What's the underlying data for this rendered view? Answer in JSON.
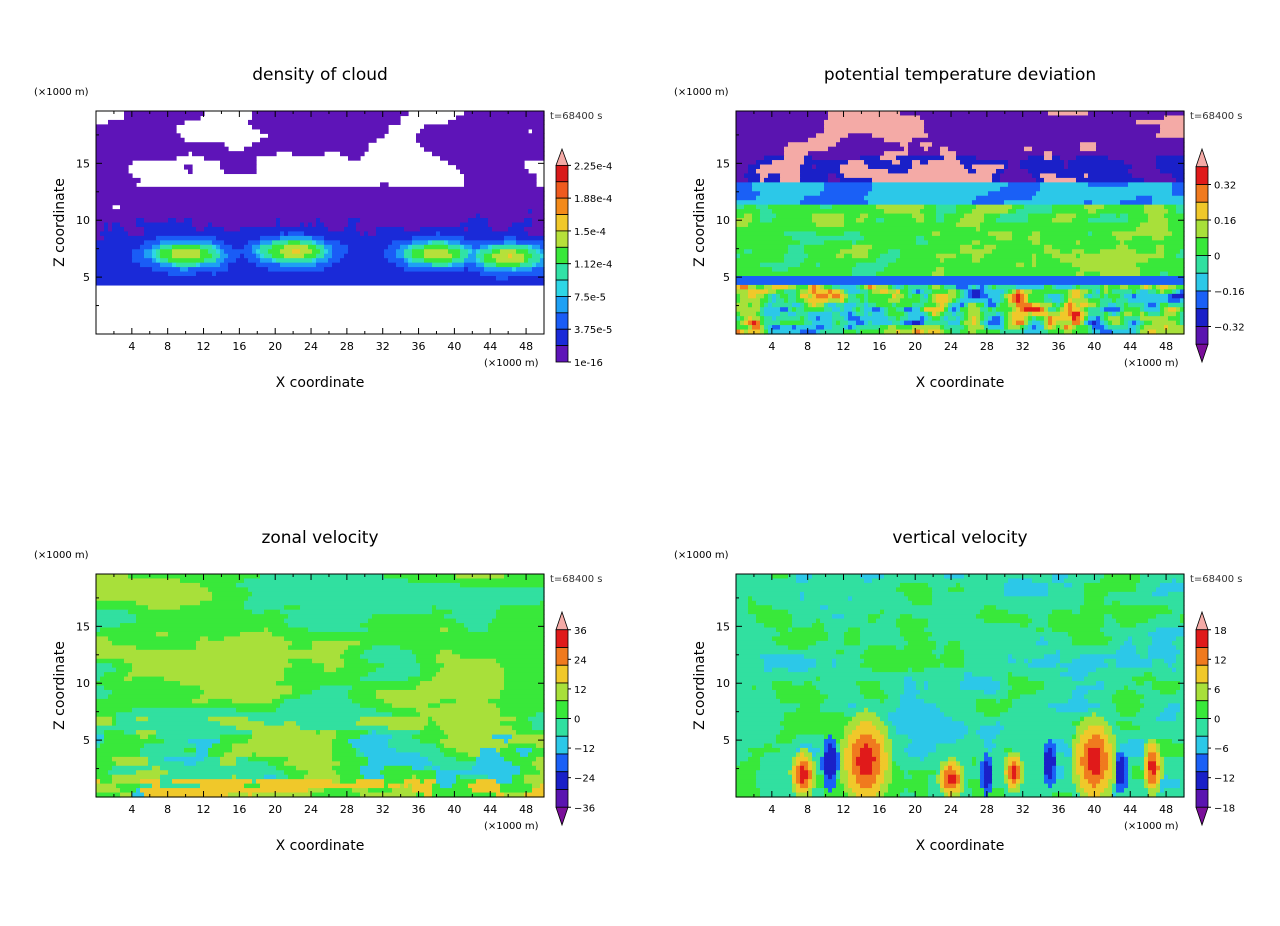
{
  "chart_data": [
    {
      "type": "heatmap",
      "title": "density of cloud",
      "xlabel": "X coordinate",
      "ylabel": "Z coordinate",
      "x_unit": "(×1000 m)",
      "y_unit": "(×1000 m)",
      "time_label": "t=68400 s",
      "xlim": [
        0,
        50
      ],
      "ylim": [
        0,
        19.6
      ],
      "x_ticks": [
        "4",
        "8",
        "12",
        "16",
        "20",
        "24",
        "28",
        "32",
        "36",
        "40",
        "44",
        "48"
      ],
      "y_ticks": [
        "5",
        "10",
        "15"
      ],
      "colorbar": {
        "labels": [
          "2.25e-4",
          "1.88e-4",
          "1.5e-4",
          "1.12e-4",
          "7.5e-5",
          "3.75e-5",
          "1e-16"
        ],
        "colors": [
          "#f4aaa6",
          "#d81a1a",
          "#ef5a1e",
          "#f38a1a",
          "#f0c82a",
          "#b6e03a",
          "#39e83a",
          "#31e2a6",
          "#2ed6e6",
          "#1ea0f4",
          "#1a5cf6",
          "#1a2ad8",
          "#5e14b8"
        ]
      },
      "field": "cloud"
    },
    {
      "type": "heatmap",
      "title": "potential temperature deviation",
      "xlabel": "X coordinate",
      "ylabel": "Z coordinate",
      "x_unit": "(×1000 m)",
      "y_unit": "(×1000 m)",
      "time_label": "t=68400 s",
      "xlim": [
        0,
        50
      ],
      "ylim": [
        0,
        19.6
      ],
      "x_ticks": [
        "4",
        "8",
        "12",
        "16",
        "20",
        "24",
        "28",
        "32",
        "36",
        "40",
        "44",
        "48"
      ],
      "y_ticks": [
        "5",
        "10",
        "15"
      ],
      "colorbar": {
        "labels": [
          "0.32",
          "0.16",
          "0",
          "−0.16",
          "−0.32"
        ],
        "colors": [
          "#f4aaa6",
          "#e01a1a",
          "#f07a1e",
          "#f0c82a",
          "#a8e03a",
          "#39e83a",
          "#31e0a0",
          "#2cc8e8",
          "#1a60f6",
          "#1a20c8",
          "#5a14b0",
          "#7a0e9a"
        ]
      },
      "field": "theta"
    },
    {
      "type": "heatmap",
      "title": "zonal velocity",
      "xlabel": "X coordinate",
      "ylabel": "Z coordinate",
      "x_unit": "(×1000 m)",
      "y_unit": "(×1000 m)",
      "time_label": "t=68400 s",
      "xlim": [
        0,
        50
      ],
      "ylim": [
        0,
        19.6
      ],
      "x_ticks": [
        "4",
        "8",
        "12",
        "16",
        "20",
        "24",
        "28",
        "32",
        "36",
        "40",
        "44",
        "48"
      ],
      "y_ticks": [
        "5",
        "10",
        "15"
      ],
      "colorbar": {
        "labels": [
          "36",
          "24",
          "12",
          "0",
          "−12",
          "−24",
          "−36"
        ],
        "colors": [
          "#f4aaa6",
          "#e01a1a",
          "#f07a1e",
          "#f0c82a",
          "#a8e03a",
          "#39e83a",
          "#31e0a0",
          "#2cc8e8",
          "#1a60f6",
          "#1a20c8",
          "#5a14b0",
          "#7a0e9a"
        ]
      },
      "field": "u"
    },
    {
      "type": "heatmap",
      "title": "vertical velocity",
      "xlabel": "X coordinate",
      "ylabel": "Z coordinate",
      "x_unit": "(×1000 m)",
      "y_unit": "(×1000 m)",
      "time_label": "t=68400 s",
      "xlim": [
        0,
        50
      ],
      "ylim": [
        0,
        19.6
      ],
      "x_ticks": [
        "4",
        "8",
        "12",
        "16",
        "20",
        "24",
        "28",
        "32",
        "36",
        "40",
        "44",
        "48"
      ],
      "y_ticks": [
        "5",
        "10",
        "15"
      ],
      "colorbar": {
        "labels": [
          "18",
          "12",
          "6",
          "0",
          "−6",
          "−12",
          "−18"
        ],
        "colors": [
          "#f4aaa6",
          "#e01a1a",
          "#f07a1e",
          "#f0c82a",
          "#a8e03a",
          "#39e83a",
          "#31e0a0",
          "#2cc8e8",
          "#1a60f6",
          "#1a20c8",
          "#5a14b0",
          "#7a0e9a"
        ]
      },
      "field": "w"
    }
  ]
}
